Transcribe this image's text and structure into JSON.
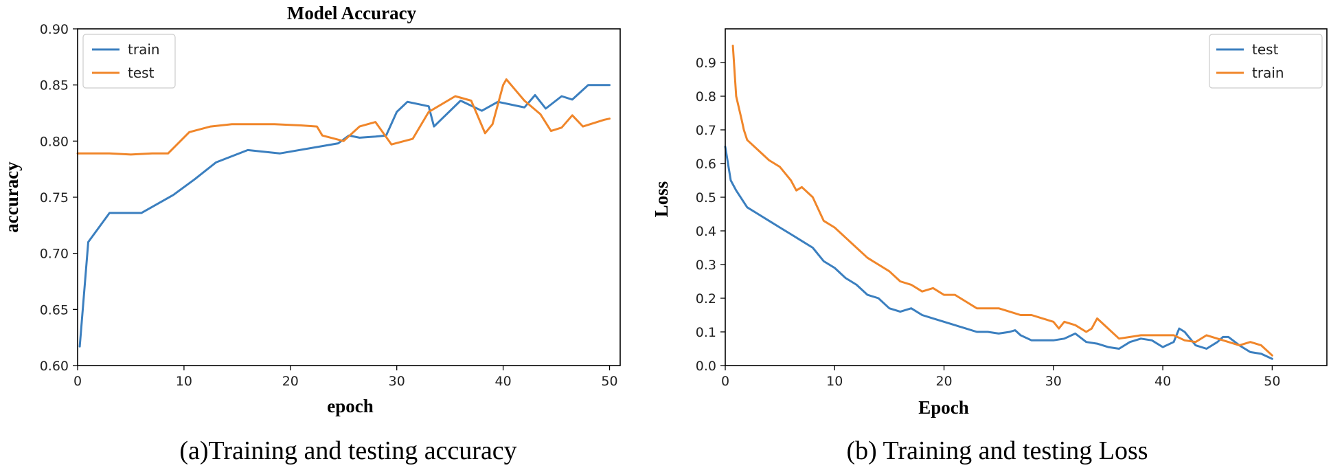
{
  "chart_data": [
    {
      "type": "line",
      "title": "Model Accuracy",
      "xlabel": "epoch",
      "ylabel": "accuracy",
      "caption": "(a)Training and testing accuracy",
      "xlim": [
        0,
        51
      ],
      "ylim": [
        0.6,
        0.9
      ],
      "xticks": [
        0,
        10,
        20,
        30,
        40,
        50
      ],
      "yticks": [
        0.6,
        0.65,
        0.7,
        0.75,
        0.8,
        0.85,
        0.9
      ],
      "xtick_labels": [
        "0",
        "10",
        "20",
        "30",
        "40",
        "50"
      ],
      "ytick_labels": [
        "0.60",
        "0.65",
        "0.70",
        "0.75",
        "0.80",
        "0.85",
        "0.90"
      ],
      "legend_position": "top-left",
      "series": [
        {
          "name": "train",
          "color": "#3b7fbf",
          "x": [
            0.2,
            1,
            3,
            6,
            9,
            11,
            13,
            16,
            19,
            24.5,
            25.5,
            26.5,
            28,
            29,
            30,
            31,
            33,
            33.5,
            36,
            38,
            39.5,
            42,
            43,
            44,
            45.5,
            46.5,
            48,
            50
          ],
          "y": [
            0.617,
            0.71,
            0.736,
            0.736,
            0.752,
            0.766,
            0.781,
            0.792,
            0.789,
            0.798,
            0.805,
            0.803,
            0.804,
            0.805,
            0.826,
            0.835,
            0.831,
            0.813,
            0.836,
            0.827,
            0.835,
            0.83,
            0.841,
            0.829,
            0.84,
            0.837,
            0.85,
            0.85
          ]
        },
        {
          "name": "test",
          "color": "#f0862a",
          "x": [
            0,
            3,
            5,
            7,
            8.5,
            10.5,
            12.5,
            14.5,
            17,
            18.5,
            21,
            22.5,
            23,
            25,
            26.5,
            28,
            29.5,
            31.5,
            33,
            35.5,
            37,
            38.3,
            39,
            40,
            40.3,
            42,
            43.5,
            44.5,
            45.5,
            46.5,
            47.5,
            49.5,
            50
          ],
          "y": [
            0.789,
            0.789,
            0.788,
            0.789,
            0.789,
            0.808,
            0.813,
            0.815,
            0.815,
            0.815,
            0.814,
            0.813,
            0.805,
            0.8,
            0.813,
            0.817,
            0.797,
            0.802,
            0.826,
            0.84,
            0.836,
            0.807,
            0.815,
            0.85,
            0.855,
            0.836,
            0.824,
            0.809,
            0.812,
            0.823,
            0.813,
            0.819,
            0.82
          ]
        }
      ]
    },
    {
      "type": "line",
      "title": "",
      "xlabel": "Epoch",
      "ylabel": "Loss",
      "caption": "(b) Training and testing Loss",
      "xlim": [
        0,
        55
      ],
      "ylim": [
        0,
        1.0
      ],
      "xticks": [
        0,
        10,
        20,
        30,
        40,
        50
      ],
      "yticks": [
        0.0,
        0.1,
        0.2,
        0.3,
        0.4,
        0.5,
        0.6,
        0.7,
        0.8,
        0.9
      ],
      "xtick_labels": [
        "0",
        "10",
        "20",
        "30",
        "40",
        "50"
      ],
      "ytick_labels": [
        "0.0",
        "0.1",
        "0.2",
        "0.3",
        "0.4",
        "0.5",
        "0.6",
        "0.7",
        "0.8",
        "0.9"
      ],
      "legend_position": "top-right",
      "series": [
        {
          "name": "test",
          "color": "#3b7fbf",
          "x": [
            0,
            0.5,
            1,
            2,
            3,
            4,
            5,
            6,
            7,
            8,
            9,
            10,
            11,
            12,
            13,
            14,
            15,
            16,
            17,
            18,
            19,
            20,
            21,
            22,
            23,
            24,
            25,
            26,
            26.5,
            27,
            28,
            29,
            30,
            31,
            32,
            33,
            34,
            35,
            36,
            37,
            38,
            39,
            40,
            41,
            41.5,
            42,
            43,
            44,
            45,
            45.5,
            46,
            47,
            48,
            49,
            50
          ],
          "y": [
            0.65,
            0.55,
            0.52,
            0.47,
            0.45,
            0.43,
            0.41,
            0.39,
            0.37,
            0.35,
            0.31,
            0.29,
            0.26,
            0.24,
            0.21,
            0.2,
            0.17,
            0.16,
            0.17,
            0.15,
            0.14,
            0.13,
            0.12,
            0.11,
            0.1,
            0.1,
            0.095,
            0.1,
            0.105,
            0.09,
            0.075,
            0.075,
            0.075,
            0.08,
            0.095,
            0.07,
            0.065,
            0.055,
            0.05,
            0.07,
            0.08,
            0.075,
            0.055,
            0.07,
            0.11,
            0.1,
            0.06,
            0.05,
            0.07,
            0.085,
            0.085,
            0.06,
            0.04,
            0.035,
            0.02
          ]
        },
        {
          "name": "train",
          "color": "#f0862a",
          "x": [
            0.7,
            1,
            1.5,
            1.7,
            2,
            3,
            4,
            5,
            6,
            6.5,
            7,
            8,
            9,
            10,
            11,
            12,
            13,
            14,
            15,
            16,
            17,
            18,
            19,
            20,
            21,
            22,
            23,
            24,
            25,
            26,
            27,
            28,
            29,
            30,
            30.5,
            31,
            32,
            33,
            33.5,
            34,
            35,
            36,
            37,
            38,
            39,
            40,
            41,
            42,
            43,
            44,
            45,
            46,
            47,
            48,
            49,
            50
          ],
          "y": [
            0.95,
            0.8,
            0.73,
            0.7,
            0.67,
            0.64,
            0.61,
            0.59,
            0.55,
            0.52,
            0.53,
            0.5,
            0.43,
            0.41,
            0.38,
            0.35,
            0.32,
            0.3,
            0.28,
            0.25,
            0.24,
            0.22,
            0.23,
            0.21,
            0.21,
            0.19,
            0.17,
            0.17,
            0.17,
            0.16,
            0.15,
            0.15,
            0.14,
            0.13,
            0.11,
            0.13,
            0.12,
            0.1,
            0.11,
            0.14,
            0.11,
            0.08,
            0.085,
            0.09,
            0.09,
            0.09,
            0.09,
            0.075,
            0.07,
            0.09,
            0.08,
            0.07,
            0.06,
            0.07,
            0.06,
            0.03
          ]
        }
      ]
    }
  ]
}
